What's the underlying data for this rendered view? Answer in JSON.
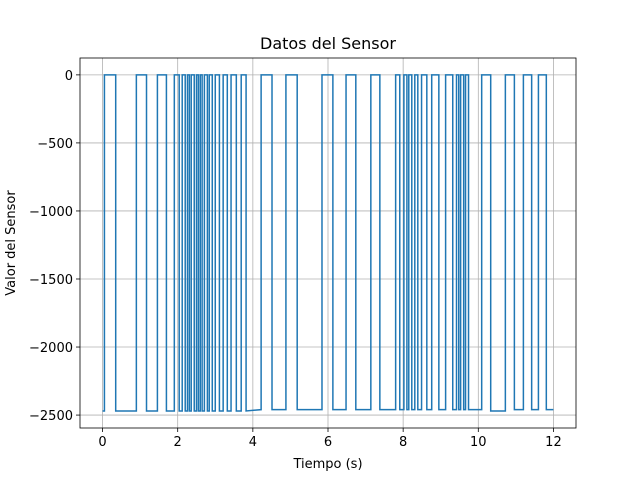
{
  "chart_data": {
    "type": "line",
    "title": "Datos del Sensor",
    "x_label": "Tiempo (s)",
    "y_label": "Valor del Sensor",
    "grid": true,
    "xlim": [
      -0.6,
      12.6
    ],
    "ylim": [
      -2595,
      124
    ],
    "xticks": [
      0,
      2,
      4,
      6,
      8,
      10,
      12
    ],
    "yticks": [
      {
        "value": -2500,
        "label": "−2500"
      },
      {
        "value": -2000,
        "label": "−2000"
      },
      {
        "value": -1500,
        "label": "−1500"
      },
      {
        "value": -1000,
        "label": "−1000"
      },
      {
        "value": -500,
        "label": "−500"
      },
      0
    ],
    "x": [
      0,
      0.05,
      0.05,
      0.35,
      0.35,
      0.9,
      0.9,
      1.17,
      1.17,
      1.46,
      1.46,
      1.7,
      1.7,
      1.91,
      1.91,
      2.04,
      2.04,
      2.12,
      2.12,
      2.2,
      2.2,
      2.26,
      2.26,
      2.31,
      2.31,
      2.36,
      2.36,
      2.44,
      2.44,
      2.5,
      2.5,
      2.55,
      2.55,
      2.6,
      2.6,
      2.65,
      2.65,
      2.71,
      2.71,
      2.79,
      2.79,
      2.84,
      2.84,
      2.92,
      2.92,
      3.0,
      3.0,
      3.11,
      3.11,
      3.21,
      3.21,
      3.32,
      3.32,
      3.42,
      3.42,
      3.56,
      3.56,
      3.69,
      3.69,
      3.82,
      3.82,
      4.22,
      4.22,
      4.51,
      4.51,
      4.88,
      4.88,
      5.18,
      5.18,
      5.84,
      5.84,
      6.13,
      6.13,
      6.48,
      6.48,
      6.74,
      6.74,
      7.14,
      7.14,
      7.38,
      7.38,
      7.8,
      7.8,
      7.91,
      7.91,
      8.02,
      8.02,
      8.1,
      8.1,
      8.15,
      8.15,
      8.23,
      8.23,
      8.31,
      8.31,
      8.39,
      8.39,
      8.49,
      8.49,
      8.63,
      8.63,
      8.76,
      8.76,
      8.95,
      8.95,
      9.13,
      9.13,
      9.32,
      9.32,
      9.42,
      9.42,
      9.48,
      9.48,
      9.53,
      9.53,
      9.61,
      9.61,
      9.66,
      9.66,
      9.74,
      9.74,
      10.09,
      10.09,
      10.33,
      10.33,
      10.72,
      10.72,
      10.96,
      10.96,
      11.2,
      11.2,
      11.42,
      11.42,
      11.6,
      11.6,
      11.81,
      11.81,
      12
    ],
    "series": [
      {
        "color": "#1f77b4",
        "values": [
          -2470,
          -2470,
          0,
          0,
          -2470,
          -2470,
          0,
          0,
          -2470,
          -2470,
          0,
          0,
          -2470,
          -2470,
          0,
          0,
          -2470,
          -2470,
          0,
          0,
          -2470,
          -2470,
          0,
          0,
          -2470,
          -2470,
          0,
          0,
          -2470,
          -2470,
          0,
          0,
          -2470,
          -2470,
          0,
          0,
          -2470,
          -2470,
          0,
          0,
          -2470,
          -2470,
          0,
          0,
          -2470,
          -2470,
          0,
          0,
          -2470,
          -2470,
          0,
          0,
          -2470,
          -2470,
          0,
          0,
          -2470,
          -2470,
          0,
          0,
          -2470,
          -2460,
          0,
          0,
          -2460,
          -2460,
          0,
          0,
          -2460,
          -2460,
          0,
          0,
          -2460,
          -2460,
          0,
          0,
          -2460,
          -2460,
          0,
          0,
          -2460,
          -2460,
          0,
          0,
          -2460,
          -2460,
          0,
          0,
          -2460,
          -2460,
          0,
          0,
          -2460,
          -2460,
          0,
          0,
          -2460,
          -2460,
          0,
          0,
          -2460,
          -2460,
          0,
          0,
          -2460,
          -2460,
          0,
          0,
          -2460,
          -2460,
          0,
          0,
          -2460,
          -2460,
          0,
          0,
          -2460,
          -2460,
          0,
          0,
          -2460,
          -2460,
          0,
          0,
          -2470,
          -2470,
          0,
          0,
          -2460,
          -2460,
          0,
          0,
          -2460,
          -2460,
          0,
          0,
          -2460,
          -2460
        ]
      }
    ]
  }
}
